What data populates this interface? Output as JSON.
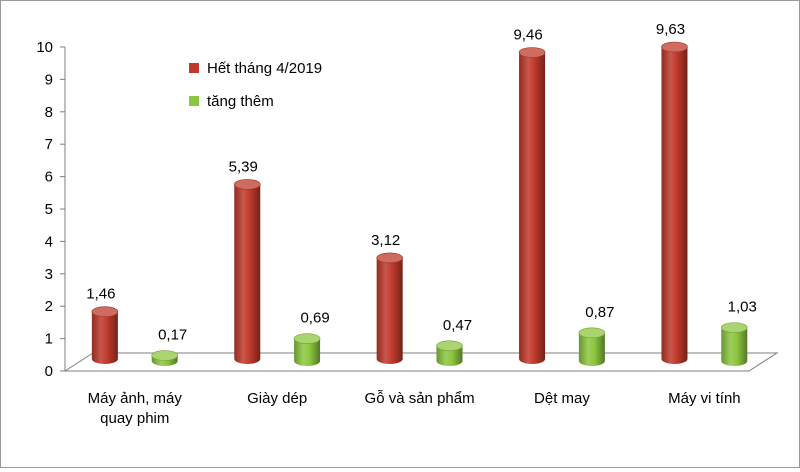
{
  "chart_data": {
    "type": "bar",
    "categories": [
      "Máy ảnh, máy quay phim",
      "Giày dép",
      "Gỗ và sản phẩm",
      "Dệt may",
      "Máy vi tính"
    ],
    "category_lines": [
      [
        "Máy ảnh, máy",
        "quay phim"
      ],
      [
        "Giày dép"
      ],
      [
        "Gỗ và sản phẩm"
      ],
      [
        "Dệt may"
      ],
      [
        "Máy vi tính"
      ]
    ],
    "series": [
      {
        "name": "Hết tháng 4/2019",
        "values": [
          1.46,
          5.39,
          3.12,
          9.46,
          9.63
        ],
        "labels": [
          "1,46",
          "5,39",
          "3,12",
          "9,46",
          "9,63"
        ],
        "color": "#c0392b"
      },
      {
        "name": "tăng thêm",
        "values": [
          0.17,
          0.69,
          0.47,
          0.87,
          1.03
        ],
        "labels": [
          "0,17",
          "0,69",
          "0,47",
          "0,87",
          "1,03"
        ],
        "color": "#8cc63f"
      }
    ],
    "ylim": [
      0,
      10
    ],
    "yticks": [
      "0",
      "1",
      "2",
      "3",
      "4",
      "5",
      "6",
      "7",
      "8",
      "9",
      "10"
    ],
    "legend_position": "top-left",
    "grid": false,
    "style": "3d-cylinder"
  }
}
